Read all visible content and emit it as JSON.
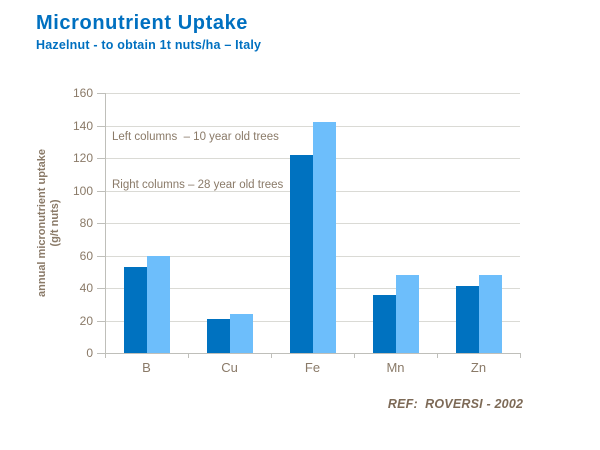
{
  "header": {
    "title": "Micronutrient Uptake",
    "subtitle": "Hazelnut - to obtain 1t nuts/ha – Italy"
  },
  "legend": {
    "line1": "Left columns  – 10 year old trees",
    "line2": "Right columns – 28 year old trees"
  },
  "footer": {
    "ref": "REF:  ROVERSI - 2002"
  },
  "chart_data": {
    "type": "bar",
    "title": "Micronutrient Uptake",
    "subtitle": "Hazelnut - to obtain 1t nuts/ha – Italy",
    "categories": [
      "B",
      "Cu",
      "Fe",
      "Mn",
      "Zn"
    ],
    "series": [
      {
        "name": "10 year old trees",
        "position": "left columns",
        "color": "#0072C0",
        "values": [
          53,
          21,
          122,
          36,
          41
        ]
      },
      {
        "name": "28 year old trees",
        "position": "right columns",
        "color": "#6DBEFB",
        "values": [
          60,
          24,
          142,
          48,
          48
        ]
      }
    ],
    "xlabel": "",
    "ylabel": "annual micronutrient uptake (g/t nuts)",
    "ylabel_line1": "annual micronutrient uptake",
    "ylabel_line2": "(g/t nuts)",
    "ylim": [
      0,
      160
    ],
    "ytick_step": 20,
    "grid": true,
    "legend_position": "top-left-inside",
    "annotation": "REF:  ROVERSI - 2002"
  },
  "colors": {
    "title_blue": "#0070C0",
    "text_brown": "#8a7a68",
    "ref_brown": "#7d6a57",
    "gridline": "#DADAD5",
    "axis": "#BFBFBA",
    "background": "#FFFFFF"
  }
}
